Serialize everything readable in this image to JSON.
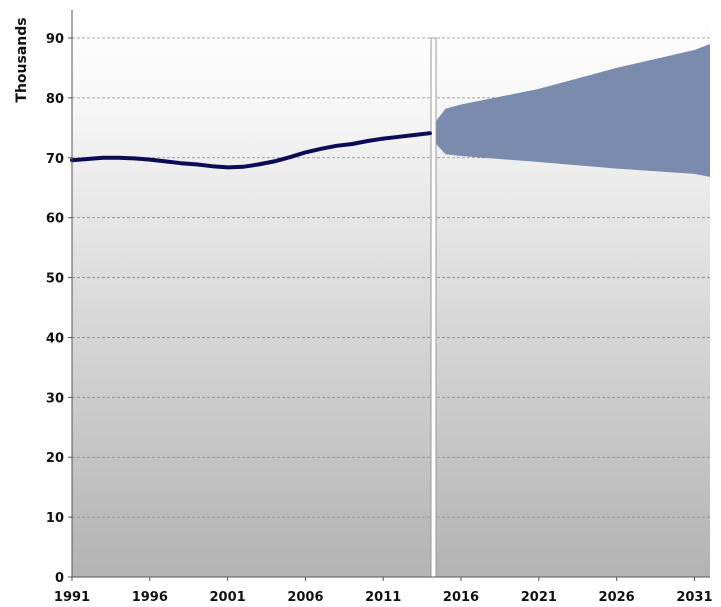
{
  "chart_data": {
    "type": "line",
    "title": "",
    "xlabel": "",
    "ylabel": "Thousands",
    "xlim": [
      1991,
      2032
    ],
    "ylim": [
      0,
      90
    ],
    "x_ticks": [
      1991,
      1996,
      2001,
      2006,
      2011,
      2016,
      2021,
      2026,
      2031
    ],
    "y_ticks": [
      0,
      10,
      20,
      30,
      40,
      50,
      60,
      70,
      80,
      90
    ],
    "grid": "horizontal dashed",
    "legend": "none",
    "divider_year": 2014.2,
    "series": [
      {
        "kind": "line",
        "color": "#0a0a55",
        "x": [
          1991,
          1992,
          1993,
          1994,
          1995,
          1996,
          1997,
          1998,
          1999,
          2000,
          2001,
          2002,
          2003,
          2004,
          2005,
          2006,
          2007,
          2008,
          2009,
          2010,
          2011,
          2012,
          2013,
          2014
        ],
        "y": [
          69.6,
          69.8,
          70.0,
          70.0,
          69.9,
          69.7,
          69.4,
          69.1,
          68.9,
          68.6,
          68.4,
          68.5,
          68.9,
          69.4,
          70.1,
          70.9,
          71.5,
          72.0,
          72.3,
          72.8,
          73.2,
          73.5,
          73.8,
          74.1
        ]
      },
      {
        "kind": "band",
        "color": "#7b8bad",
        "x": [
          2014,
          2014.5,
          2015,
          2016,
          2021,
          2026,
          2031,
          2032
        ],
        "upper": [
          74.1,
          76.5,
          78.2,
          78.9,
          81.5,
          85.0,
          88.0,
          89.0
        ],
        "lower": [
          74.1,
          72.0,
          70.6,
          70.3,
          69.3,
          68.2,
          67.3,
          66.8
        ]
      }
    ]
  }
}
